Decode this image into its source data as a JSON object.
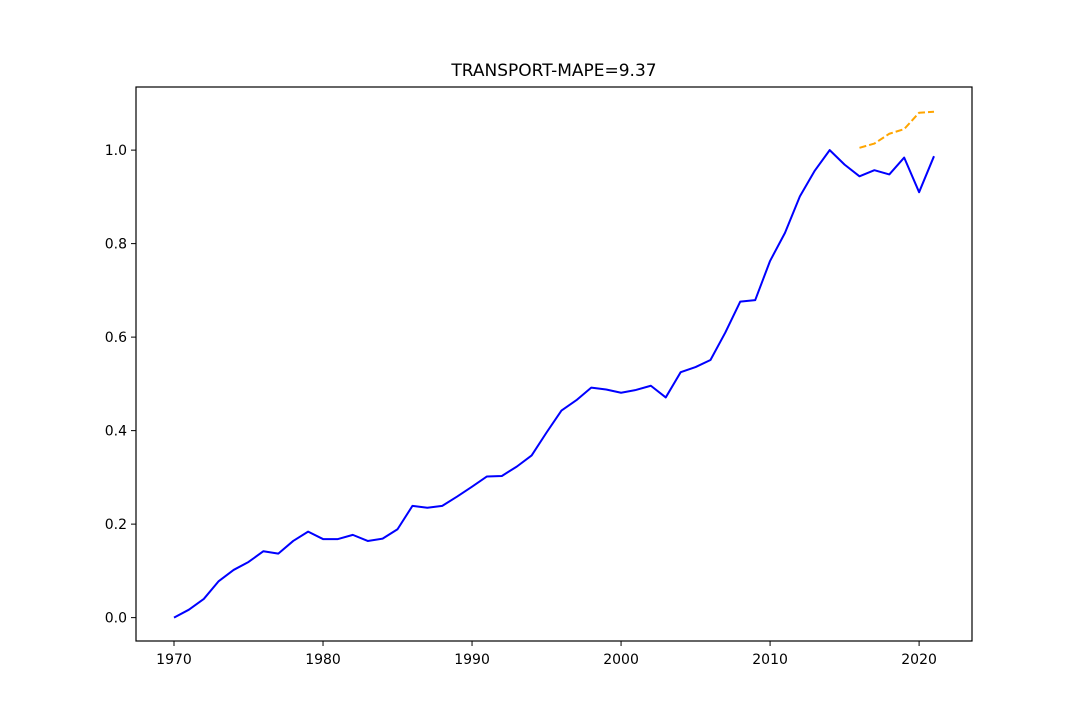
{
  "chart_data": {
    "type": "line",
    "title": "TRANSPORT-MAPE=9.37",
    "xlabel": "",
    "ylabel": "",
    "xlim": [
      1967.45,
      2023.55
    ],
    "ylim": [
      -0.05,
      1.135
    ],
    "xticks": [
      1970,
      1980,
      1990,
      2000,
      2010,
      2020
    ],
    "yticks": [
      0.0,
      0.2,
      0.4,
      0.6,
      0.8,
      1.0
    ],
    "ytick_labels": [
      "0.0",
      "0.2",
      "0.4",
      "0.6",
      "0.8",
      "1.0"
    ],
    "grid": false,
    "series": [
      {
        "color": "#0000ff",
        "linestyle": "solid",
        "x": [
          1970,
          1971,
          1972,
          1973,
          1974,
          1975,
          1976,
          1977,
          1978,
          1979,
          1980,
          1981,
          1982,
          1983,
          1984,
          1985,
          1986,
          1987,
          1988,
          1989,
          1990,
          1991,
          1992,
          1993,
          1994,
          1995,
          1996,
          1997,
          1998,
          1999,
          2000,
          2001,
          2002,
          2003,
          2004,
          2005,
          2006,
          2007,
          2008,
          2009,
          2010,
          2011,
          2012,
          2013,
          2014,
          2015,
          2016,
          2017,
          2018,
          2019,
          2020,
          2021
        ],
        "y": [
          0.0,
          0.017,
          0.04,
          0.078,
          0.102,
          0.119,
          0.142,
          0.137,
          0.164,
          0.184,
          0.168,
          0.168,
          0.177,
          0.164,
          0.169,
          0.189,
          0.239,
          0.235,
          0.239,
          0.259,
          0.28,
          0.302,
          0.303,
          0.323,
          0.347,
          0.396,
          0.443,
          0.465,
          0.492,
          0.488,
          0.481,
          0.487,
          0.496,
          0.471,
          0.525,
          0.536,
          0.551,
          0.61,
          0.676,
          0.679,
          0.763,
          0.823,
          0.901,
          0.956,
          1.0,
          0.969,
          0.944,
          0.957,
          0.948,
          0.984,
          0.91,
          0.987
        ]
      },
      {
        "color": "#ffa500",
        "linestyle": "dashed",
        "x": [
          2016,
          2017,
          2018,
          2019,
          2020,
          2021
        ],
        "y": [
          1.005,
          1.014,
          1.035,
          1.045,
          1.08,
          1.082
        ]
      }
    ]
  }
}
